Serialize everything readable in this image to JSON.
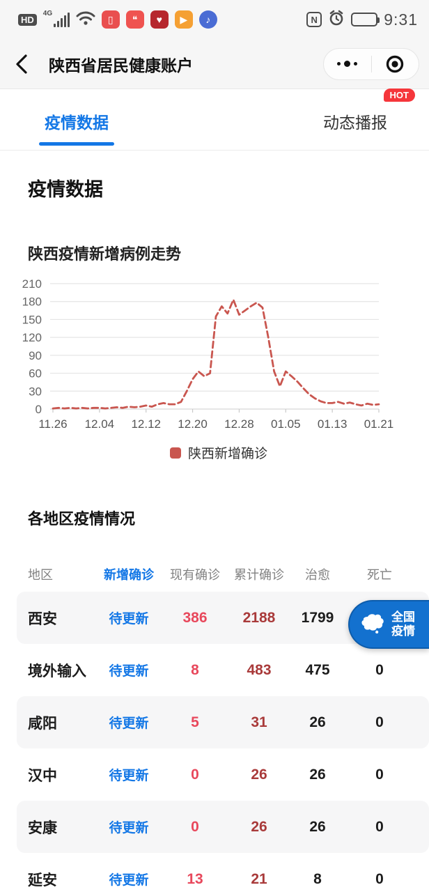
{
  "status_bar": {
    "hd_label": "HD",
    "network_label": "4G",
    "nfc_label": "N",
    "time": "9:31",
    "battery_level_percent": 25,
    "app_icon_glyphs": {
      "book": "▯",
      "chat": "❝",
      "heart": "♥",
      "video": "▶",
      "music": "♪"
    },
    "app_icon_colors": {
      "book": "#e94f4f",
      "chat": "#ef5350",
      "heart": "#b6272e",
      "video": "#f5a033",
      "music": "#4a6cd4"
    }
  },
  "nav": {
    "title": "陕西省居民健康账户"
  },
  "tabs": [
    {
      "label": "疫情数据",
      "active": true
    },
    {
      "label": "动态播报",
      "active": false,
      "badge": "HOT"
    }
  ],
  "page": {
    "heading": "疫情数据",
    "section_title": "各地区疫情情况"
  },
  "chart_data": {
    "type": "line",
    "title": "陕西疫情新增病例走势",
    "x_start_date": "11.26",
    "x_end_date": "01.21",
    "x_tick_labels": [
      "11.26",
      "12.04",
      "12.12",
      "12.20",
      "12.28",
      "01.05",
      "01.13",
      "01.21"
    ],
    "x_tick_indices": [
      0,
      8,
      16,
      24,
      32,
      40,
      48,
      56
    ],
    "y_ticks": [
      0,
      30,
      60,
      90,
      120,
      150,
      180,
      210
    ],
    "ylim": [
      0,
      210
    ],
    "grid": true,
    "legend_position": "bottom",
    "series": [
      {
        "name": "陕西新增确诊",
        "color": "#c9564f",
        "line_style": "dashed",
        "values": [
          1,
          2,
          1,
          2,
          1,
          2,
          1,
          2,
          2,
          1,
          2,
          3,
          2,
          4,
          3,
          4,
          6,
          4,
          8,
          10,
          8,
          8,
          12,
          30,
          50,
          63,
          55,
          60,
          155,
          172,
          160,
          183,
          158,
          165,
          172,
          178,
          170,
          120,
          63,
          38,
          63,
          55,
          46,
          35,
          25,
          18,
          13,
          10,
          10,
          12,
          9,
          11,
          8,
          6,
          9,
          7,
          8
        ]
      }
    ]
  },
  "table": {
    "headers": [
      {
        "label": "地区"
      },
      {
        "label": "新增确诊",
        "accent": true
      },
      {
        "label": "现有确诊"
      },
      {
        "label": "累计确诊"
      },
      {
        "label": "治愈"
      },
      {
        "label": "死亡"
      }
    ],
    "rows": [
      {
        "region": "西安",
        "new": "待更新",
        "existing": "386",
        "cumulative": "2188",
        "cured": "1799",
        "deaths": ""
      },
      {
        "region": "境外输入",
        "new": "待更新",
        "existing": "8",
        "cumulative": "483",
        "cured": "475",
        "deaths": "0"
      },
      {
        "region": "咸阳",
        "new": "待更新",
        "existing": "5",
        "cumulative": "31",
        "cured": "26",
        "deaths": "0"
      },
      {
        "region": "汉中",
        "new": "待更新",
        "existing": "0",
        "cumulative": "26",
        "cured": "26",
        "deaths": "0"
      },
      {
        "region": "安康",
        "new": "待更新",
        "existing": "0",
        "cumulative": "26",
        "cured": "26",
        "deaths": "0"
      },
      {
        "region": "延安",
        "new": "待更新",
        "existing": "13",
        "cumulative": "21",
        "cured": "8",
        "deaths": "0"
      }
    ]
  },
  "floating_button": {
    "line1": "全国",
    "line2": "疫情"
  },
  "colors": {
    "accent_blue": "#1377e6",
    "line_red": "#c9564f",
    "existing_red": "#e8485c",
    "cumulative_red": "#a93a3a",
    "hot_red": "#f5363b",
    "button_blue": "#1371cf",
    "chrome_gray": "#f6f6f6"
  }
}
